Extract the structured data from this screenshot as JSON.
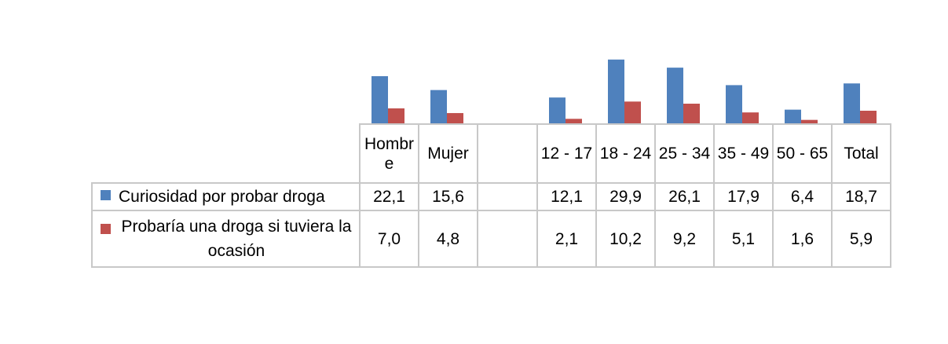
{
  "chart_data": {
    "type": "bar",
    "categories": [
      "Hombre",
      "Mujer",
      "",
      "12 - 17",
      "18 - 24",
      "25 - 34",
      "35 - 49",
      "50 - 65",
      "Total"
    ],
    "series": [
      {
        "name": "Curiosidad por probar droga",
        "color": "#4f81bd",
        "values": [
          22.1,
          15.6,
          null,
          12.1,
          29.9,
          26.1,
          17.9,
          6.4,
          18.7
        ],
        "labels": [
          "22,1",
          "15,6",
          "",
          "12,1",
          "29,9",
          "26,1",
          "17,9",
          "6,4",
          "18,7"
        ]
      },
      {
        "name": "Probaría una droga si tuviera la ocasión",
        "color": "#c0504d",
        "values": [
          7.0,
          4.8,
          null,
          2.1,
          10.2,
          9.2,
          5.1,
          1.6,
          5.9
        ],
        "labels": [
          "7,0",
          "4,8",
          "",
          "2,1",
          "10,2",
          "9,2",
          "5,1",
          "1,6",
          "5,9"
        ]
      }
    ],
    "ylim": [
      0,
      30
    ],
    "legend": "data-table",
    "grid": false
  }
}
